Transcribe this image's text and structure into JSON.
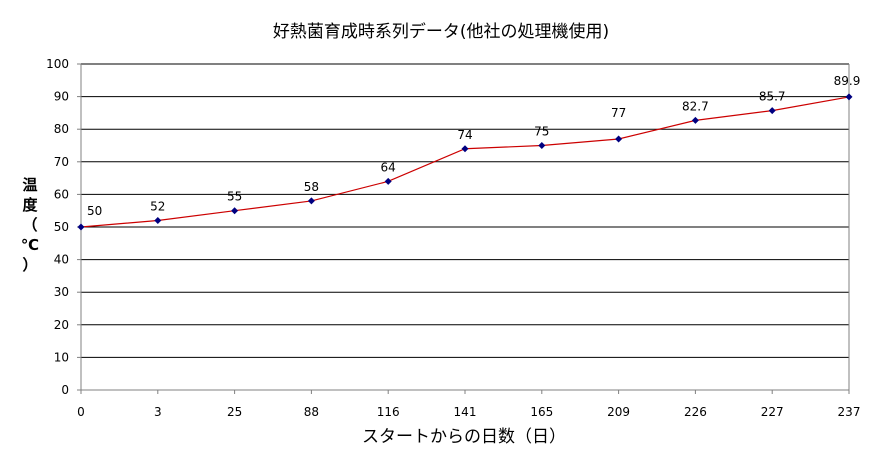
{
  "chart_data": {
    "type": "line",
    "title": "好熱菌育成時系列データ(他社の処理機使用)",
    "xlabel": "スタートからの日数（日）",
    "ylabel": "温度（℃）",
    "ylim": [
      0,
      100
    ],
    "y_ticks": [
      "0",
      "10",
      "20",
      "30",
      "40",
      "50",
      "60",
      "70",
      "80",
      "90",
      "100"
    ],
    "grid": true,
    "categories": [
      "0",
      "3",
      "25",
      "88",
      "116",
      "141",
      "165",
      "209",
      "226",
      "227",
      "237"
    ],
    "series": [
      {
        "values": [
          50,
          52,
          55,
          58,
          64,
          74,
          75,
          77,
          82.7,
          85.7,
          89.9
        ],
        "labels": [
          "50",
          "52",
          "55",
          "58",
          "64",
          "74",
          "75",
          "77",
          "82.7",
          "85.7",
          "89.9"
        ],
        "line_color": "#cc0000",
        "marker_color": "#000080"
      }
    ]
  }
}
